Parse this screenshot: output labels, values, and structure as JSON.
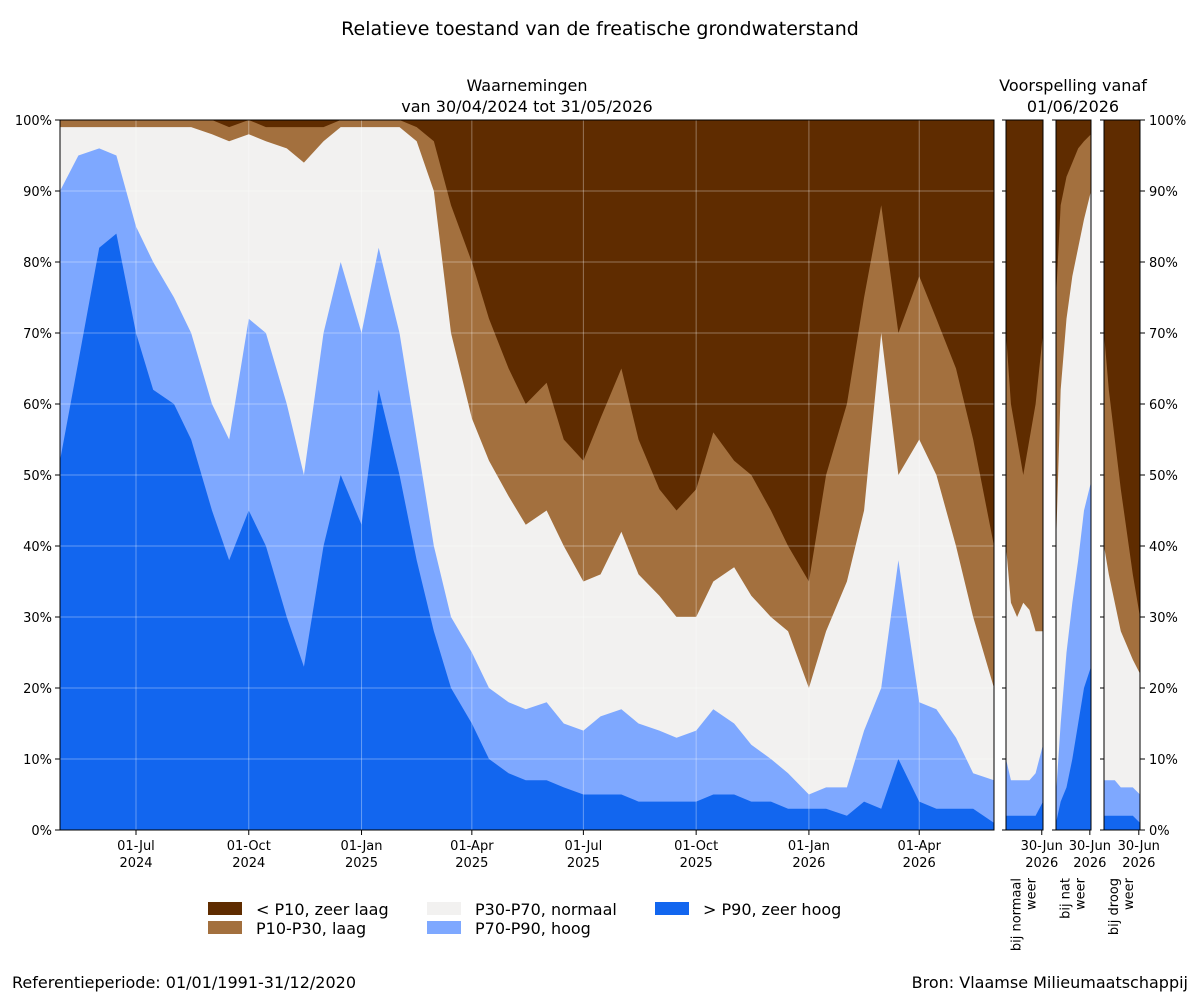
{
  "chart_data": {
    "type": "area",
    "title": "Relatieve toestand van de freatische grondwaterstand",
    "stacking": "percent (100%)",
    "colors": {
      "zeer_laag": "#5f2c00",
      "laag": "#a3703e",
      "normaal": "#f2f1f0",
      "hoog": "#7ea8ff",
      "zeer_hoog": "#1266ef"
    },
    "legend": {
      "placement": "bottom-center",
      "entries": [
        {
          "key": "zeer_laag",
          "label": "< P10, zeer laag"
        },
        {
          "key": "laag",
          "label": "P10-P30, laag"
        },
        {
          "key": "normaal",
          "label": "P30-P70, normaal"
        },
        {
          "key": "hoog",
          "label": "P70-P90, hoog"
        },
        {
          "key": "zeer_hoog",
          "label": "> P90, zeer hoog"
        }
      ]
    },
    "ylim": [
      0,
      100
    ],
    "yticks": [
      0,
      10,
      20,
      30,
      40,
      50,
      60,
      70,
      80,
      90,
      100
    ],
    "ytick_labels": [
      "0%",
      "10%",
      "20%",
      "30%",
      "40%",
      "50%",
      "60%",
      "70%",
      "80%",
      "90%",
      "100%"
    ],
    "grid": true,
    "observations": {
      "title_line1": "Waarnemingen",
      "title_line2": "van 30/04/2024 tot 31/05/2026",
      "xlim": [
        "2024-04-30",
        "2026-05-31"
      ],
      "xticks": [
        {
          "date": "2024-07-01",
          "label1": "01-Jul",
          "label2": "2024"
        },
        {
          "date": "2024-10-01",
          "label1": "01-Oct",
          "label2": "2024"
        },
        {
          "date": "2025-01-01",
          "label1": "01-Jan",
          "label2": "2025"
        },
        {
          "date": "2025-04-01",
          "label1": "01-Apr",
          "label2": "2025"
        },
        {
          "date": "2025-07-01",
          "label1": "01-Jul",
          "label2": "2025"
        },
        {
          "date": "2025-10-01",
          "label1": "01-Oct",
          "label2": "2025"
        },
        {
          "date": "2026-01-01",
          "label1": "01-Jan",
          "label2": "2026"
        },
        {
          "date": "2026-04-01",
          "label1": "01-Apr",
          "label2": "2026"
        }
      ],
      "series_note": "cumulative upper bounds (%) per category, bottom to top",
      "x": [
        "2024-04-30",
        "2024-05-15",
        "2024-06-01",
        "2024-06-15",
        "2024-07-01",
        "2024-07-15",
        "2024-08-01",
        "2024-08-15",
        "2024-09-01",
        "2024-09-15",
        "2024-10-01",
        "2024-10-15",
        "2024-11-01",
        "2024-11-15",
        "2024-12-01",
        "2024-12-15",
        "2025-01-01",
        "2025-01-15",
        "2025-02-01",
        "2025-02-15",
        "2025-03-01",
        "2025-03-15",
        "2025-04-01",
        "2025-04-15",
        "2025-05-01",
        "2025-05-15",
        "2025-06-01",
        "2025-06-15",
        "2025-07-01",
        "2025-07-15",
        "2025-08-01",
        "2025-08-15",
        "2025-09-01",
        "2025-09-15",
        "2025-10-01",
        "2025-10-15",
        "2025-11-01",
        "2025-11-15",
        "2025-12-01",
        "2025-12-15",
        "2026-01-01",
        "2026-01-15",
        "2026-02-01",
        "2026-02-15",
        "2026-03-01",
        "2026-03-15",
        "2026-04-01",
        "2026-04-15",
        "2026-05-01",
        "2026-05-15",
        "2026-05-31"
      ],
      "series": [
        {
          "key": "zeer_hoog",
          "values": [
            52,
            66,
            82,
            84,
            70,
            62,
            60,
            55,
            45,
            38,
            45,
            40,
            30,
            23,
            40,
            50,
            43,
            62,
            50,
            38,
            28,
            20,
            15,
            10,
            8,
            7,
            7,
            6,
            5,
            5,
            5,
            4,
            4,
            4,
            4,
            5,
            5,
            4,
            4,
            3,
            3,
            3,
            2,
            4,
            3,
            10,
            4,
            3,
            3,
            3,
            1
          ]
        },
        {
          "key": "hoog",
          "values": [
            90,
            95,
            96,
            95,
            85,
            80,
            75,
            70,
            60,
            55,
            72,
            70,
            60,
            50,
            70,
            80,
            70,
            82,
            70,
            55,
            40,
            30,
            25,
            20,
            18,
            17,
            18,
            15,
            14,
            16,
            17,
            15,
            14,
            13,
            14,
            17,
            15,
            12,
            10,
            8,
            5,
            6,
            6,
            14,
            20,
            38,
            18,
            17,
            13,
            8,
            7
          ]
        },
        {
          "key": "normaal",
          "values": [
            99,
            99,
            99,
            99,
            99,
            99,
            99,
            99,
            98,
            97,
            98,
            97,
            96,
            94,
            97,
            99,
            99,
            99,
            99,
            97,
            90,
            70,
            58,
            52,
            47,
            43,
            45,
            40,
            35,
            36,
            42,
            36,
            33,
            30,
            30,
            35,
            37,
            33,
            30,
            28,
            20,
            28,
            35,
            45,
            70,
            50,
            55,
            50,
            40,
            30,
            20
          ]
        },
        {
          "key": "laag",
          "values": [
            100,
            100,
            100,
            100,
            100,
            100,
            100,
            100,
            100,
            99,
            100,
            99,
            99,
            99,
            99,
            100,
            100,
            100,
            100,
            99,
            97,
            88,
            80,
            72,
            65,
            60,
            63,
            55,
            52,
            58,
            65,
            55,
            48,
            45,
            48,
            56,
            52,
            50,
            45,
            40,
            35,
            50,
            60,
            75,
            88,
            70,
            78,
            72,
            65,
            55,
            40
          ]
        },
        {
          "key": "zeer_laag",
          "values": [
            100,
            100,
            100,
            100,
            100,
            100,
            100,
            100,
            100,
            100,
            100,
            100,
            100,
            100,
            100,
            100,
            100,
            100,
            100,
            100,
            100,
            100,
            100,
            100,
            100,
            100,
            100,
            100,
            100,
            100,
            100,
            100,
            100,
            100,
            100,
            100,
            100,
            100,
            100,
            100,
            100,
            100,
            100,
            100,
            100,
            100,
            100,
            100,
            100,
            100,
            100
          ]
        }
      ]
    },
    "forecast": {
      "title_line1": "Voorspelling vanaf",
      "title_line2": "01/06/2026",
      "xlim": [
        "2026-06-01",
        "2026-06-30"
      ],
      "xtick": {
        "date": "2026-06-30",
        "label1": "30-Jun",
        "label2": "2026"
      },
      "x": [
        "2026-06-01",
        "2026-06-05",
        "2026-06-10",
        "2026-06-15",
        "2026-06-20",
        "2026-06-25",
        "2026-06-30"
      ],
      "panels": [
        {
          "label_line1": "bij normaal",
          "label_line2": "weer",
          "series": [
            {
              "key": "zeer_hoog",
              "values": [
                2,
                2,
                2,
                2,
                2,
                2,
                4
              ]
            },
            {
              "key": "hoog",
              "values": [
                10,
                7,
                7,
                7,
                7,
                8,
                12
              ]
            },
            {
              "key": "normaal",
              "values": [
                40,
                32,
                30,
                32,
                31,
                28,
                28
              ]
            },
            {
              "key": "laag",
              "values": [
                70,
                60,
                55,
                50,
                55,
                60,
                70
              ]
            },
            {
              "key": "zeer_laag",
              "values": [
                100,
                100,
                100,
                100,
                100,
                100,
                100
              ]
            }
          ]
        },
        {
          "label_line1": "bij nat",
          "label_line2": "weer",
          "series": [
            {
              "key": "zeer_hoog",
              "values": [
                1,
                4,
                6,
                10,
                15,
                20,
                23
              ]
            },
            {
              "key": "hoog",
              "values": [
                5,
                15,
                25,
                32,
                38,
                45,
                49
              ]
            },
            {
              "key": "normaal",
              "values": [
                40,
                62,
                72,
                78,
                82,
                86,
                90
              ]
            },
            {
              "key": "laag",
              "values": [
                75,
                88,
                92,
                94,
                96,
                97,
                98
              ]
            },
            {
              "key": "zeer_laag",
              "values": [
                100,
                100,
                100,
                100,
                100,
                100,
                100
              ]
            }
          ]
        },
        {
          "label_line1": "bij droog",
          "label_line2": "weer",
          "series": [
            {
              "key": "zeer_hoog",
              "values": [
                2,
                2,
                2,
                2,
                2,
                2,
                1
              ]
            },
            {
              "key": "hoog",
              "values": [
                7,
                7,
                7,
                6,
                6,
                6,
                5
              ]
            },
            {
              "key": "normaal",
              "values": [
                40,
                36,
                32,
                28,
                26,
                24,
                22
              ]
            },
            {
              "key": "laag",
              "values": [
                70,
                62,
                55,
                48,
                42,
                36,
                30
              ]
            },
            {
              "key": "zeer_laag",
              "values": [
                100,
                100,
                100,
                100,
                100,
                100,
                100
              ]
            }
          ]
        }
      ]
    }
  },
  "footer": {
    "left": "Referentieperiode: 01/01/1991-31/12/2020",
    "right": "Bron: Vlaamse Milieumaatschappij"
  }
}
